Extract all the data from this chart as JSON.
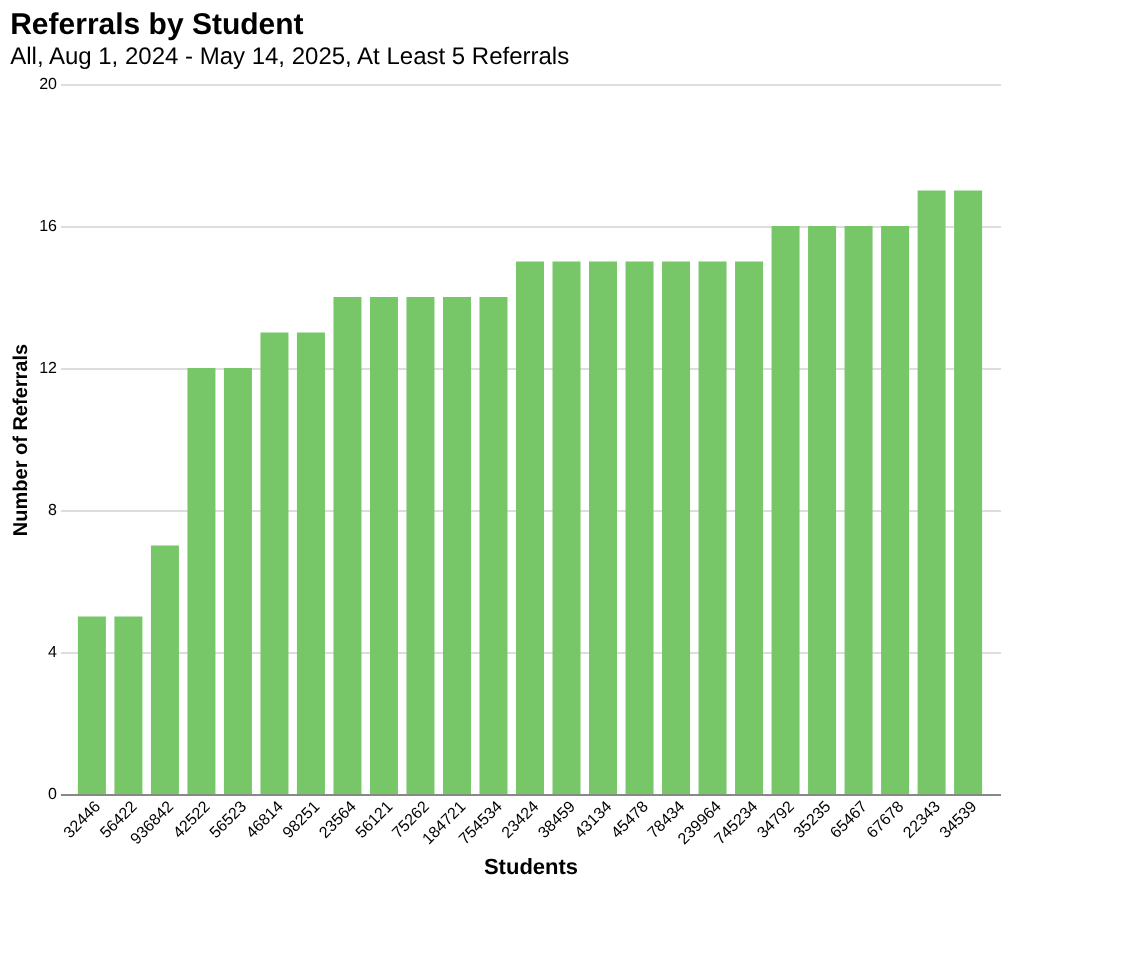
{
  "chart_data": {
    "type": "bar",
    "title": "Referrals by Student",
    "subtitle": "All, Aug 1, 2024 - May 14, 2025, At Least 5 Referrals",
    "xlabel": "Students",
    "ylabel": "Number of Referrals",
    "categories": [
      "32446",
      "56422",
      "936842",
      "42522",
      "56523",
      "46814",
      "98251",
      "23564",
      "56121",
      "75262",
      "184721",
      "754534",
      "23424",
      "38459",
      "43134",
      "45478",
      "78434",
      "239964",
      "745234",
      "34792",
      "35235",
      "65467",
      "67678",
      "22343",
      "34539"
    ],
    "values": [
      5,
      5,
      7,
      12,
      12,
      13,
      13,
      14,
      14,
      14,
      14,
      14,
      15,
      15,
      15,
      15,
      15,
      15,
      15,
      16,
      16,
      16,
      16,
      17,
      17
    ],
    "color": "#77c768",
    "ylim": [
      0,
      20
    ],
    "yticks": [
      0,
      4,
      8,
      12,
      16,
      20
    ],
    "grid": "y"
  }
}
